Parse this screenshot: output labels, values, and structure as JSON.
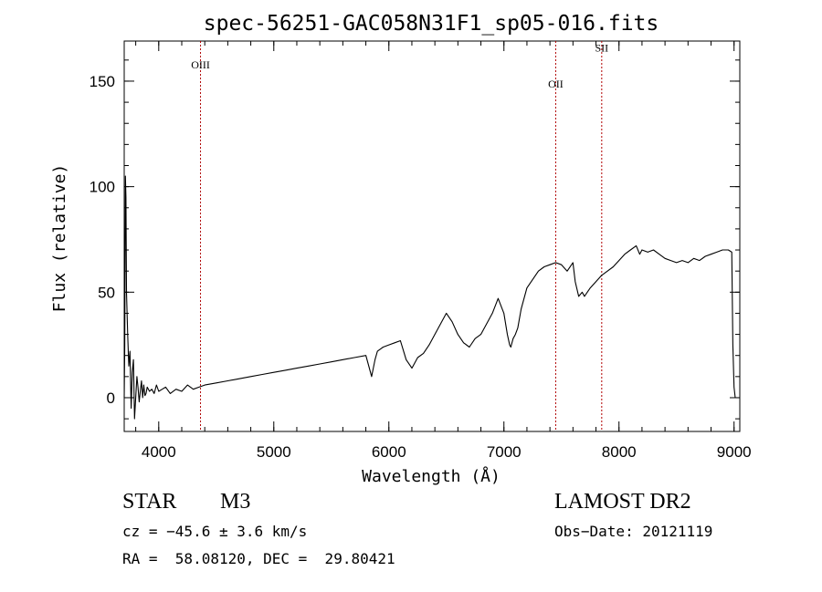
{
  "chart_data": {
    "type": "line",
    "title": "spec-56251-GAC058N31F1_sp05-016.fits",
    "xlabel": "Wavelength (Å)",
    "ylabel": "Flux (relative)",
    "xlim": [
      3700,
      9050
    ],
    "ylim": [
      -16,
      169
    ],
    "xticks": [
      4000,
      5000,
      6000,
      7000,
      8000,
      9000
    ],
    "yticks": [
      0,
      50,
      100,
      150
    ],
    "grid": false,
    "line_color": "#000000",
    "series": [
      {
        "x": [
          3700,
          3705,
          3710,
          3715,
          3720,
          3730,
          3740,
          3750,
          3760,
          3770,
          3780,
          3790,
          3800,
          3810,
          3820,
          3830,
          3840,
          3850,
          3860,
          3870,
          3880,
          3890,
          3900,
          3920,
          3940,
          3960,
          3980,
          4000,
          4030,
          4060,
          4100,
          4150,
          4200,
          4250,
          4300,
          4350,
          4400,
          4500,
          4600,
          4700,
          4800,
          4900,
          5000,
          5100,
          5200,
          5300,
          5400,
          5500,
          5600,
          5700,
          5800,
          5850,
          5880,
          5900,
          5950,
          6000,
          6050,
          6100,
          6150,
          6200,
          6250,
          6300,
          6350,
          6400,
          6450,
          6500,
          6550,
          6600,
          6650,
          6700,
          6750,
          6800,
          6850,
          6900,
          6950,
          7000,
          7030,
          7050,
          7060,
          7080,
          7100,
          7120,
          7150,
          7200,
          7250,
          7300,
          7350,
          7400,
          7450,
          7500,
          7550,
          7600,
          7620,
          7650,
          7680,
          7700,
          7750,
          7800,
          7850,
          7900,
          7950,
          8000,
          8050,
          8100,
          8150,
          8180,
          8200,
          8250,
          8300,
          8350,
          8400,
          8450,
          8500,
          8550,
          8600,
          8650,
          8700,
          8750,
          8800,
          8850,
          8900,
          8950,
          8980,
          8990,
          9000,
          9010
        ],
        "y": [
          0,
          25,
          105,
          95,
          50,
          30,
          15,
          22,
          -5,
          12,
          18,
          -10,
          0,
          10,
          5,
          -2,
          3,
          8,
          0,
          6,
          1,
          2,
          5,
          3,
          4,
          2,
          6,
          3,
          4,
          5,
          2,
          4,
          3,
          6,
          4,
          5,
          6,
          7,
          8,
          9,
          10,
          11,
          12,
          13,
          14,
          15,
          16,
          17,
          18,
          19,
          20,
          10,
          18,
          22,
          24,
          25,
          26,
          27,
          18,
          14,
          19,
          21,
          25,
          30,
          35,
          40,
          36,
          30,
          26,
          24,
          28,
          30,
          35,
          40,
          47,
          40,
          30,
          25,
          24,
          28,
          30,
          33,
          42,
          52,
          56,
          60,
          62,
          63,
          64,
          63,
          60,
          64,
          55,
          48,
          50,
          48,
          52,
          55,
          58,
          60,
          62,
          65,
          68,
          70,
          72,
          68,
          70,
          69,
          70,
          68,
          66,
          65,
          64,
          65,
          64,
          66,
          65,
          67,
          68,
          69,
          70,
          70,
          69,
          25,
          5,
          0
        ]
      }
    ],
    "line_markers": [
      {
        "x": 4363,
        "label": "OIII",
        "label_y": 156
      },
      {
        "x": 7450,
        "label": "OII",
        "label_y": 147
      },
      {
        "x": 7850,
        "label": "SII",
        "label_y": 164
      }
    ],
    "marker_color": "#b00000"
  },
  "info": {
    "object_class": "STAR",
    "subclass": "M3",
    "survey": "LAMOST DR2",
    "velocity": "cz = −45.6 ± 3.6 km/s",
    "obs_date": "Obs−Date: 20121119",
    "coordinates": "RA =  58.08120, DEC =  29.80421"
  }
}
